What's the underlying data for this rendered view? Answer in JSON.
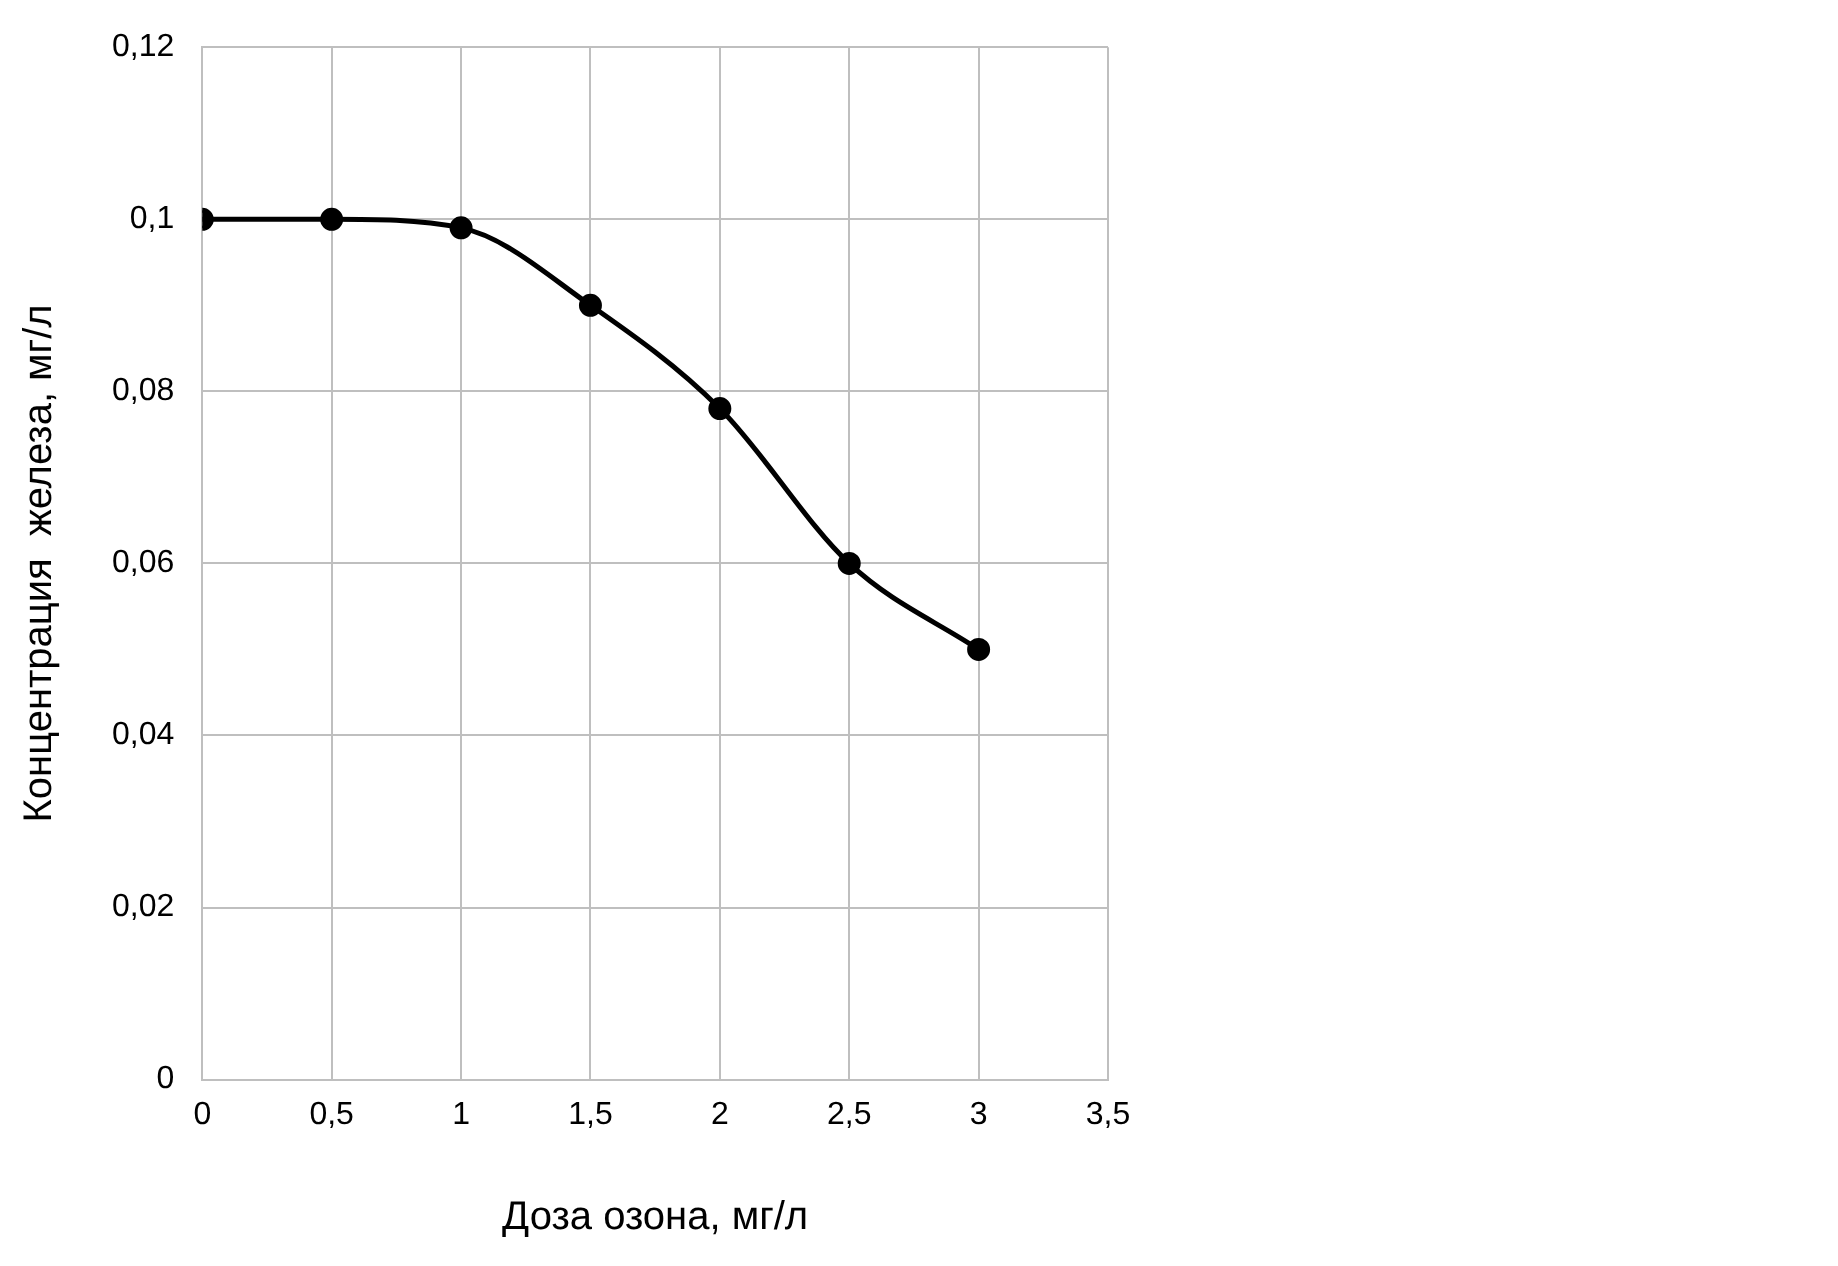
{
  "chart_data": {
    "type": "line",
    "xlabel": "Доза озона, мг/л",
    "ylabel": "Концентрация  железа, мг/л",
    "x": [
      0,
      0.5,
      1,
      1.5,
      2,
      2.5,
      3
    ],
    "series": [
      {
        "color": "#000000",
        "values": [
          0.1,
          0.1,
          0.099,
          0.09,
          0.078,
          0.06,
          0.05
        ]
      }
    ],
    "xlim": [
      0,
      3.5
    ],
    "xticks": [
      {
        "value": 0,
        "label": "0"
      },
      {
        "value": 0.5,
        "label": "0,5"
      },
      {
        "value": 1,
        "label": "1"
      },
      {
        "value": 1.5,
        "label": "1,5"
      },
      {
        "value": 2,
        "label": "2"
      },
      {
        "value": 2.5,
        "label": "2,5"
      },
      {
        "value": 3,
        "label": "3"
      },
      {
        "value": 3.5,
        "label": "3,5"
      }
    ],
    "ylim": [
      0,
      0.12
    ],
    "yticks": [
      {
        "value": 0,
        "label": "0"
      },
      {
        "value": 0.02,
        "label": "0,02"
      },
      {
        "value": 0.04,
        "label": "0,04"
      },
      {
        "value": 0.06,
        "label": "0,06"
      },
      {
        "value": 0.08,
        "label": "0,08"
      },
      {
        "value": 0.1,
        "label": "0,1"
      },
      {
        "value": 0.12,
        "label": "0,12"
      }
    ],
    "grid": true,
    "legend": false,
    "marker": "circle",
    "line_style": "solid"
  }
}
